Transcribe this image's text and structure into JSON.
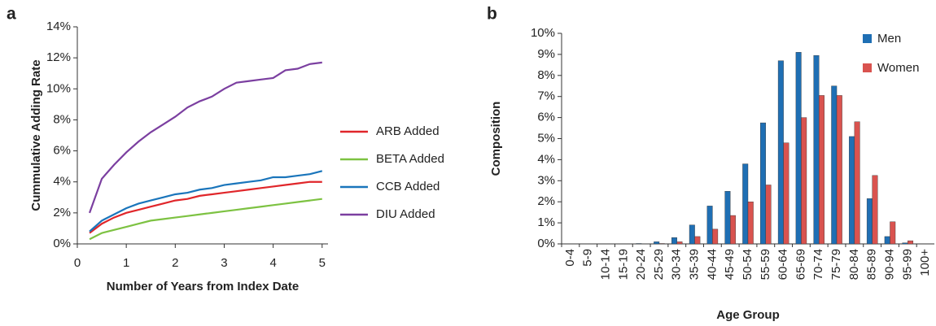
{
  "chart_data": [
    {
      "type": "line",
      "panel": "a",
      "x_label": "Number of Years from Index Date",
      "y_label": "Cummulative Adding Rate",
      "x": [
        0.25,
        0.5,
        0.75,
        1,
        1.25,
        1.5,
        1.75,
        2,
        2.25,
        2.5,
        2.75,
        3,
        3.25,
        3.5,
        3.75,
        4,
        4.25,
        4.5,
        4.75,
        5
      ],
      "series": [
        {
          "name": "ARB Added",
          "color": "#e0262a",
          "values": [
            0.7,
            1.3,
            1.7,
            2.0,
            2.2,
            2.4,
            2.6,
            2.8,
            2.9,
            3.1,
            3.2,
            3.3,
            3.4,
            3.5,
            3.6,
            3.7,
            3.8,
            3.9,
            4.0,
            4.0
          ]
        },
        {
          "name": "BETA Added",
          "color": "#7dc242",
          "values": [
            0.3,
            0.7,
            0.9,
            1.1,
            1.3,
            1.5,
            1.6,
            1.7,
            1.8,
            1.9,
            2.0,
            2.1,
            2.2,
            2.3,
            2.4,
            2.5,
            2.6,
            2.7,
            2.8,
            2.9
          ]
        },
        {
          "name": "CCB Added",
          "color": "#1a75bb",
          "values": [
            0.8,
            1.5,
            1.9,
            2.3,
            2.6,
            2.8,
            3.0,
            3.2,
            3.3,
            3.5,
            3.6,
            3.8,
            3.9,
            4.0,
            4.1,
            4.3,
            4.3,
            4.4,
            4.5,
            4.7
          ]
        },
        {
          "name": "DIU Added",
          "color": "#7b3fa0",
          "values": [
            2.0,
            4.2,
            5.1,
            5.9,
            6.6,
            7.2,
            7.7,
            8.2,
            8.8,
            9.2,
            9.5,
            10.0,
            10.4,
            10.5,
            10.6,
            10.7,
            11.2,
            11.3,
            11.6,
            11.7
          ]
        }
      ],
      "xlim": [
        0,
        5.12
      ],
      "xticks": [
        0,
        1,
        2,
        3,
        4,
        5
      ],
      "ylim": [
        0,
        14
      ],
      "yticks": [
        {
          "value": 0,
          "label": "0%"
        },
        {
          "value": 2,
          "label": "2%"
        },
        {
          "value": 4,
          "label": "4%"
        },
        {
          "value": 6,
          "label": "6%"
        },
        {
          "value": 8,
          "label": "8%"
        },
        {
          "value": 10,
          "label": "10%"
        },
        {
          "value": 12,
          "label": "12%"
        },
        {
          "value": 14,
          "label": "14%"
        }
      ],
      "legend": "right"
    },
    {
      "type": "bar",
      "panel": "b",
      "x_label": "Age Group",
      "y_label": "Composition",
      "categories": [
        "0-4",
        "5-9",
        "10-14",
        "15-19",
        "20-24",
        "25-29",
        "30-34",
        "35-39",
        "40-44",
        "45-49",
        "50-54",
        "55-59",
        "60-64",
        "65-69",
        "70-74",
        "75-79",
        "80-84",
        "85-89",
        "90-94",
        "95-99",
        "100+"
      ],
      "series": [
        {
          "name": "Men",
          "color": "#1f6fb4",
          "values": [
            0,
            0,
            0,
            0,
            0.02,
            0.1,
            0.3,
            0.9,
            1.8,
            2.5,
            3.8,
            5.75,
            8.7,
            9.1,
            8.95,
            7.5,
            5.1,
            2.15,
            0.35,
            0.05,
            0
          ]
        },
        {
          "name": "Women",
          "color": "#d9534f",
          "values": [
            0,
            0,
            0,
            0,
            0,
            0.02,
            0.1,
            0.35,
            0.7,
            1.35,
            2.0,
            2.8,
            4.8,
            6.0,
            7.05,
            7.05,
            5.8,
            3.25,
            1.05,
            0.15,
            0
          ]
        }
      ],
      "ylim": [
        0,
        10
      ],
      "yticks": [
        {
          "value": 0,
          "label": "0%"
        },
        {
          "value": 1,
          "label": "1%"
        },
        {
          "value": 2,
          "label": "2%"
        },
        {
          "value": 3,
          "label": "3%"
        },
        {
          "value": 4,
          "label": "4%"
        },
        {
          "value": 5,
          "label": "5%"
        },
        {
          "value": 6,
          "label": "6%"
        },
        {
          "value": 7,
          "label": "7%"
        },
        {
          "value": 8,
          "label": "8%"
        },
        {
          "value": 9,
          "label": "9%"
        },
        {
          "value": 10,
          "label": "10%"
        }
      ],
      "legend": "upper right"
    }
  ]
}
